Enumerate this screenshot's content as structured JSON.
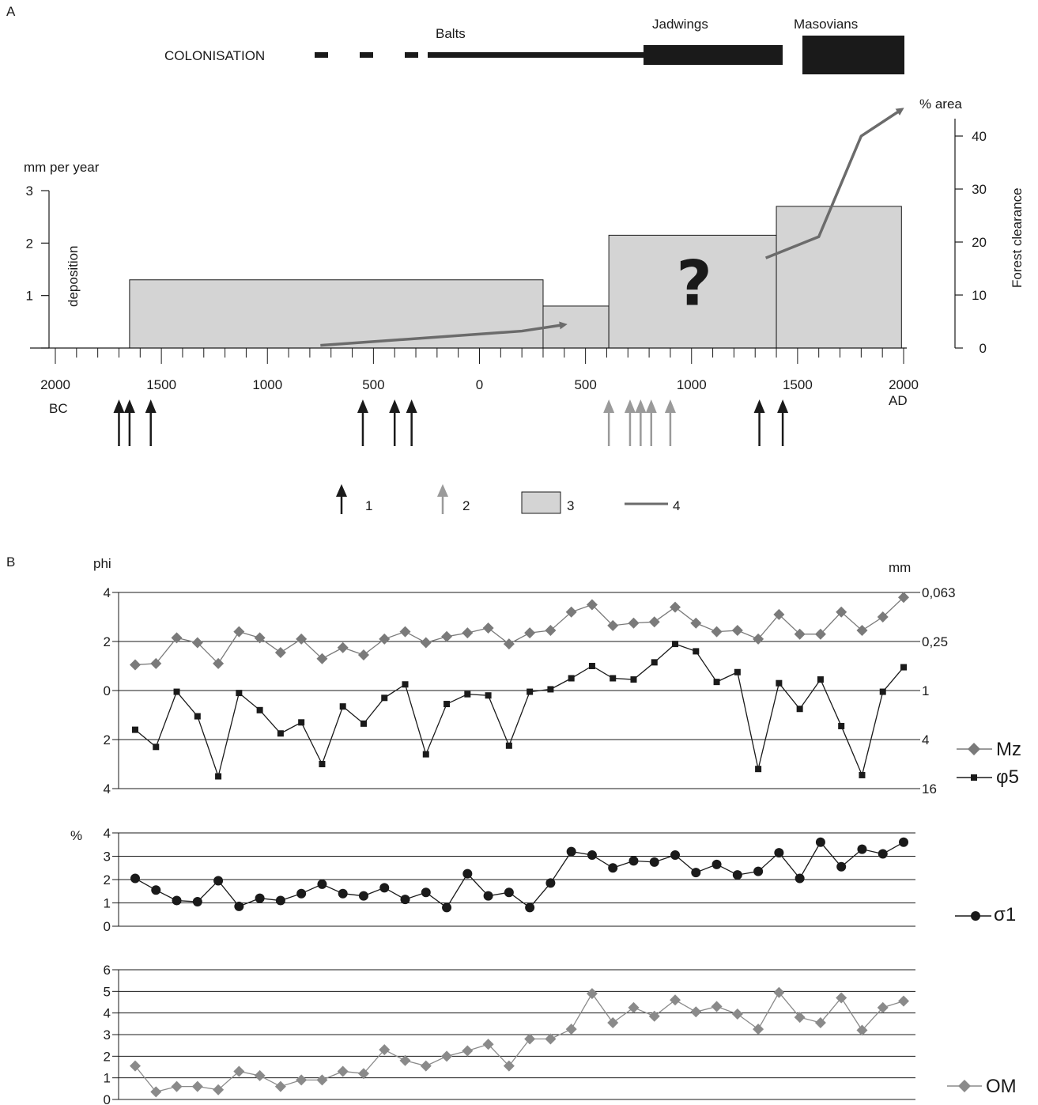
{
  "panel_labels": {
    "a": "A",
    "b": "B"
  },
  "colonisation": {
    "label": "COLONISATION",
    "groups": [
      {
        "name": "Balts",
        "from": -1000,
        "to": 800,
        "style": "dashed-then-line"
      },
      {
        "name": "Jadwings",
        "from": 800,
        "to": 1450,
        "style": "thick-bar"
      },
      {
        "name": "Masovians",
        "from": 1500,
        "to": 1980,
        "style": "thick-bar"
      }
    ]
  },
  "chart_data": [
    {
      "id": "deposition-forest-clearance",
      "type": "bar",
      "ylabel": "mm per year",
      "y_inner_label": "deposition",
      "ylim": [
        0,
        3
      ],
      "y_ticks": [
        "1",
        "2",
        "3"
      ],
      "y2_label": "% area",
      "y2_title": "Forest clearance",
      "y2_ticks": [
        "0",
        "10",
        "20",
        "30",
        "40"
      ],
      "y2lim": [
        0,
        40
      ],
      "x_ticks": [
        {
          "year": -2000,
          "label": "2000"
        },
        {
          "year": -1500,
          "label": "1500"
        },
        {
          "year": -1000,
          "label": "1000"
        },
        {
          "year": -500,
          "label": "500"
        },
        {
          "year": 0,
          "label": "0"
        },
        {
          "year": 500,
          "label": "500"
        },
        {
          "year": 1000,
          "label": "1000"
        },
        {
          "year": 1500,
          "label": "1500"
        },
        {
          "year": 2000,
          "label": "2000"
        }
      ],
      "x_era_left": "BC",
      "x_era_right": "AD",
      "xlim": [
        -2000,
        2000
      ],
      "deposition_bars": [
        {
          "from": -1650,
          "to": 300,
          "value": 1.3
        },
        {
          "from": 300,
          "to": 610,
          "value": 0.8
        },
        {
          "from": 610,
          "to": 1400,
          "value": 2.15,
          "uncertain_mark": "?"
        },
        {
          "from": 1400,
          "to": 1990,
          "value": 2.7
        }
      ],
      "forest_clearance_lines": [
        {
          "points": [
            [
              -750,
              0.5
            ],
            [
              200,
              3.2
            ],
            [
              400,
              4.4
            ]
          ],
          "arrow": true
        },
        {
          "points": [
            [
              1350,
              17
            ],
            [
              1600,
              21
            ],
            [
              1800,
              40
            ],
            [
              1990,
              45
            ]
          ],
          "arrow": true
        }
      ],
      "dated_events_type1": [
        -1700,
        -1650,
        -1550,
        -550,
        -400,
        -320,
        1320,
        1430
      ],
      "dated_events_type2": [
        610,
        710,
        760,
        810,
        900
      ]
    },
    {
      "id": "mz-phi5",
      "type": "line",
      "ylabel": "phi",
      "y2_label": "mm",
      "y_ticks": [
        "4",
        "2",
        "0",
        "2",
        "4"
      ],
      "y2_ticks": [
        "0,063",
        "0,25",
        "1",
        "4",
        "16"
      ],
      "series": [
        {
          "name": "Mz",
          "marker": "diamond",
          "color": "#7a7a7a",
          "values": [
            1.05,
            1.1,
            2.15,
            1.95,
            1.1,
            2.4,
            2.15,
            1.55,
            2.1,
            1.3,
            1.75,
            1.45,
            2.1,
            2.4,
            1.95,
            2.2,
            2.35,
            2.55,
            1.9,
            2.35,
            2.45,
            3.2,
            3.5,
            2.65,
            2.75,
            2.8,
            3.4,
            2.75,
            2.4,
            2.45,
            2.1,
            3.1,
            2.3,
            2.3,
            3.2,
            2.45,
            3.0,
            3.8
          ]
        },
        {
          "name": "φ5",
          "marker": "square",
          "color": "#1a1a1a",
          "values": [
            -1.6,
            -2.3,
            -0.05,
            -1.05,
            -3.5,
            -0.1,
            -0.8,
            -1.75,
            -1.3,
            -3.0,
            -0.65,
            -1.35,
            -0.3,
            0.25,
            -2.6,
            -0.55,
            -0.15,
            -0.2,
            -2.25,
            -0.05,
            0.05,
            0.5,
            1.0,
            0.5,
            0.45,
            1.15,
            1.9,
            1.6,
            0.35,
            0.75,
            -3.2,
            0.3,
            -0.75,
            0.45,
            -1.45,
            -3.45,
            -0.05,
            0.95
          ]
        }
      ]
    },
    {
      "id": "sigma1",
      "type": "line",
      "ylabel": "%",
      "y_ticks": [
        "0",
        "1",
        "2",
        "3",
        "4"
      ],
      "series": [
        {
          "name": "σ1",
          "marker": "circle",
          "color": "#1a1a1a",
          "values": [
            2.05,
            1.55,
            1.1,
            1.05,
            1.95,
            0.85,
            1.2,
            1.1,
            1.4,
            1.8,
            1.4,
            1.3,
            1.65,
            1.15,
            1.45,
            0.8,
            2.25,
            1.3,
            1.45,
            0.8,
            1.85,
            3.2,
            3.05,
            2.5,
            2.8,
            2.75,
            3.05,
            2.3,
            2.65,
            2.2,
            2.35,
            3.15,
            2.05,
            3.6,
            2.55,
            3.3,
            3.1,
            3.6
          ]
        }
      ]
    },
    {
      "id": "om",
      "type": "line",
      "y_ticks": [
        "0",
        "1",
        "2",
        "3",
        "4",
        "5",
        "6"
      ],
      "series": [
        {
          "name": "OM",
          "marker": "diamond",
          "color": "#8a8a8a",
          "values": [
            1.55,
            0.35,
            0.6,
            0.6,
            0.45,
            1.3,
            1.1,
            0.6,
            0.9,
            0.9,
            1.3,
            1.2,
            2.3,
            1.8,
            1.55,
            2.0,
            2.25,
            2.55,
            1.55,
            2.8,
            2.8,
            3.25,
            4.9,
            3.55,
            4.25,
            3.85,
            4.6,
            4.05,
            4.3,
            3.95,
            3.25,
            4.95,
            3.8,
            3.55,
            4.7,
            3.2,
            4.25,
            4.55
          ]
        }
      ]
    }
  ],
  "legend_a": [
    {
      "key": "1",
      "symbol": "black-arrow"
    },
    {
      "key": "2",
      "symbol": "gray-arrow"
    },
    {
      "key": "3",
      "symbol": "gray-box"
    },
    {
      "key": "4",
      "symbol": "gray-line"
    }
  ],
  "colors": {
    "bar_fill": "#d4d4d4",
    "line_gray": "#6b6b6b",
    "arrow_gray": "#9a9a9a",
    "ink": "#1a1a1a"
  }
}
